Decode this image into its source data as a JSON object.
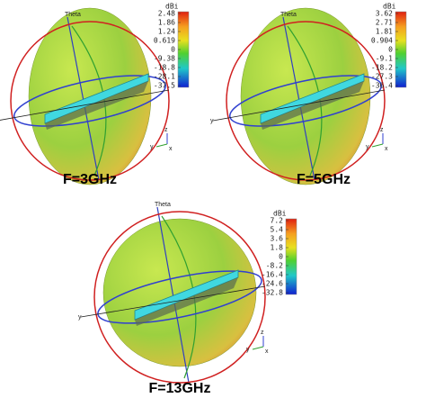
{
  "panels": [
    {
      "caption": "F=3GHz",
      "axis_label": "Theta",
      "unit": "dBi",
      "colorbar_ticks": [
        2.48,
        1.86,
        1.24,
        0.619,
        0,
        -9.38,
        -18.8,
        -28.1,
        -37.5
      ],
      "axes": [
        "z",
        "y",
        "x"
      ]
    },
    {
      "caption": "F=5GHz",
      "axis_label": "Theta",
      "unit": "dBi",
      "colorbar_ticks": [
        3.62,
        2.71,
        1.81,
        0.904,
        0,
        -9.1,
        -18.2,
        -27.3,
        -36.4
      ],
      "axes": [
        "z",
        "y",
        "x"
      ]
    },
    {
      "caption": "F=13GHz",
      "axis_label": "Theta",
      "unit": "dBi",
      "colorbar_ticks": [
        7.2,
        5.4,
        3.6,
        1.8,
        0,
        -8.2,
        -16.4,
        -24.6,
        -32.8
      ],
      "axes": [
        "z",
        "y",
        "x"
      ]
    }
  ]
}
